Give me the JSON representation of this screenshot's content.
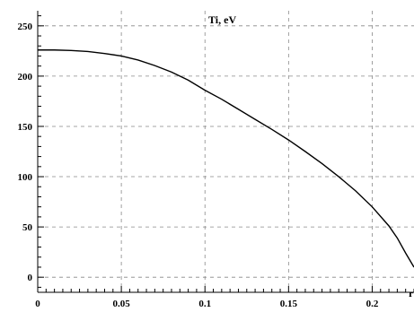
{
  "chart_data": {
    "type": "line",
    "title": "Ti, eV",
    "xlabel": "r",
    "ylabel": "",
    "xlim": [
      0,
      0.225
    ],
    "ylim": [
      -15,
      265
    ],
    "grid": true,
    "x_ticks": [
      0,
      0.05,
      0.1,
      0.15,
      0.2
    ],
    "x_tick_labels": [
      "0",
      "0.05",
      "0.1",
      "0.15",
      "0.2"
    ],
    "y_ticks": [
      0,
      50,
      100,
      150,
      200,
      250
    ],
    "y_tick_labels": [
      "0",
      "50",
      "100",
      "150",
      "200",
      "250"
    ],
    "series": [
      {
        "color": "#000000",
        "x": [
          0,
          0.01,
          0.02,
          0.03,
          0.04,
          0.05,
          0.06,
          0.07,
          0.08,
          0.09,
          0.1,
          0.11,
          0.12,
          0.13,
          0.14,
          0.15,
          0.16,
          0.17,
          0.18,
          0.19,
          0.2,
          0.21,
          0.215,
          0.22,
          0.225
        ],
        "y": [
          226,
          226,
          225.5,
          224.5,
          222.5,
          220,
          216,
          210.5,
          204,
          196,
          186,
          177,
          167,
          157,
          147,
          136.5,
          125,
          113,
          100,
          86,
          70,
          51,
          39,
          24,
          10
        ]
      }
    ]
  }
}
